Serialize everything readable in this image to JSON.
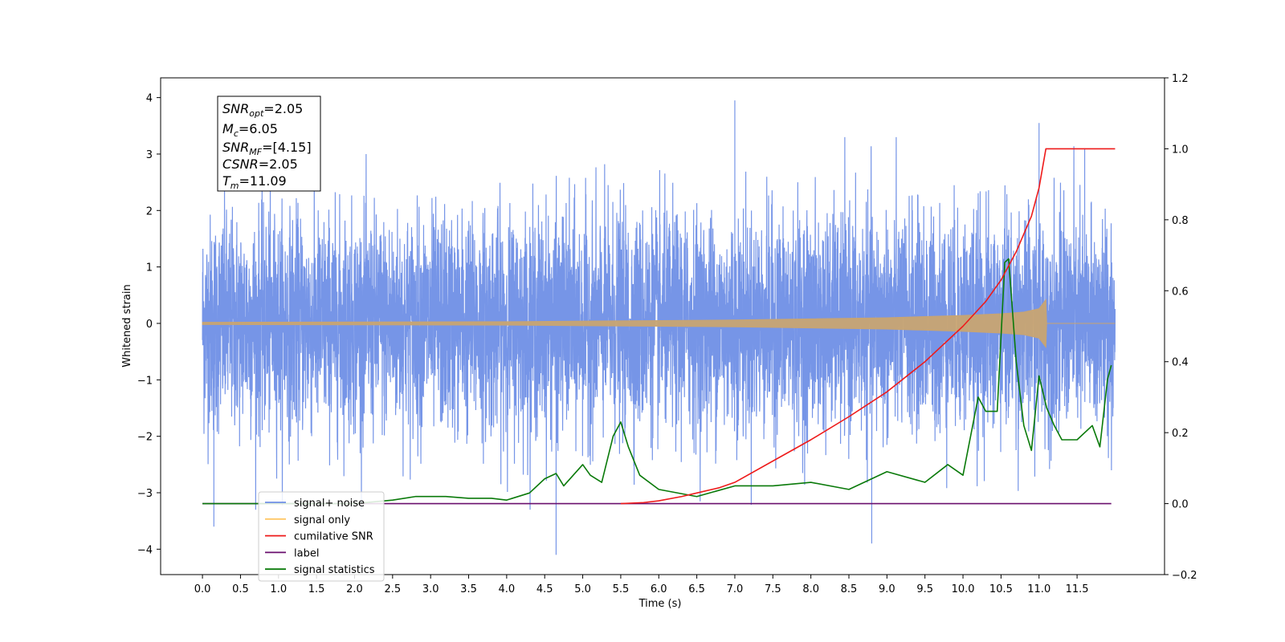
{
  "chart_data": {
    "type": "line",
    "xlabel": "Time (s)",
    "ylabel_left": "Whitened strain",
    "ylabel_right": "",
    "xlim": [
      -0.55,
      12.65
    ],
    "ylim_left": [
      -4.45,
      4.35
    ],
    "ylim_right": [
      -0.2,
      1.2
    ],
    "x_ticks": [
      0.0,
      0.5,
      1.0,
      1.5,
      2.0,
      2.5,
      3.0,
      3.5,
      4.0,
      4.5,
      5.0,
      5.5,
      6.0,
      6.5,
      7.0,
      7.5,
      8.0,
      8.5,
      9.0,
      9.5,
      10.0,
      10.5,
      11.0,
      11.5
    ],
    "x_tick_labels": [
      "0.0",
      "0.5",
      "1.0",
      "1.5",
      "2.0",
      "2.5",
      "3.0",
      "3.5",
      "4.0",
      "4.5",
      "5.0",
      "5.5",
      "6.0",
      "6.5",
      "7.0",
      "7.5",
      "8.0",
      "8.5",
      "9.0",
      "9.5",
      "10.0",
      "10.5",
      "11.0",
      "11.5"
    ],
    "y_left_ticks": [
      4,
      3,
      2,
      1,
      0,
      -1,
      -2,
      -3,
      -4
    ],
    "y_left_tick_labels": [
      "4",
      "3",
      "2",
      "1",
      "0",
      "−1",
      "−2",
      "−3",
      "−4"
    ],
    "y_right_ticks": [
      1.2,
      1.0,
      0.8,
      0.6,
      0.4,
      0.2,
      0.0,
      -0.2
    ],
    "y_right_tick_labels": [
      "1.2",
      "1.0",
      "0.8",
      "0.6",
      "0.4",
      "0.2",
      "0.0",
      "−0.2"
    ],
    "grid": false,
    "legend_position": "lower-left",
    "series": [
      {
        "name": "signal+ noise",
        "axis": "left",
        "color": "#6f8fe6",
        "description_values": "dense whitened noise between about -4.1 and 3.95, time 0 to 12.0 s",
        "notable_peaks": [
          [
            0.15,
            -3.6
          ],
          [
            4.65,
            -4.1
          ],
          [
            7.0,
            3.95
          ],
          [
            8.8,
            -3.9
          ],
          [
            11.0,
            3.55
          ],
          [
            11.6,
            3.1
          ]
        ],
        "envelope": [
          [
            0.0,
            1.3,
            -1.3
          ],
          [
            6.0,
            1.3,
            -1.3
          ],
          [
            12.0,
            1.3,
            -1.3
          ]
        ]
      },
      {
        "name": "signal only",
        "axis": "left",
        "color": "#c8a472",
        "envelope": [
          [
            0.0,
            0.02
          ],
          [
            4.0,
            0.03
          ],
          [
            6.0,
            0.05
          ],
          [
            7.0,
            0.06
          ],
          [
            8.0,
            0.08
          ],
          [
            9.0,
            0.1
          ],
          [
            9.5,
            0.12
          ],
          [
            10.0,
            0.14
          ],
          [
            10.5,
            0.17
          ],
          [
            10.8,
            0.2
          ],
          [
            11.0,
            0.26
          ],
          [
            11.09,
            0.42
          ],
          [
            11.1,
            0.0
          ],
          [
            12.0,
            0.0
          ]
        ]
      },
      {
        "name": "cumilative SNR",
        "axis": "right",
        "color": "#ee1b1b",
        "x": [
          5.5,
          5.8,
          6.0,
          6.3,
          6.5,
          6.8,
          7.0,
          7.5,
          8.0,
          8.5,
          9.0,
          9.5,
          10.0,
          10.3,
          10.5,
          10.7,
          10.9,
          11.0,
          11.09,
          11.1,
          12.0
        ],
        "values": [
          0.0,
          0.003,
          0.008,
          0.02,
          0.03,
          0.045,
          0.06,
          0.12,
          0.18,
          0.245,
          0.315,
          0.4,
          0.5,
          0.57,
          0.63,
          0.71,
          0.81,
          0.89,
          1.0,
          1.0,
          1.0
        ]
      },
      {
        "name": "label",
        "axis": "right",
        "color": "#6a0f6e",
        "x": [
          0.0,
          11.95
        ],
        "values": [
          0.0,
          0.0
        ]
      },
      {
        "name": "signal statistics",
        "axis": "right",
        "color": "#0a7a0a",
        "x": [
          0.0,
          2.0,
          2.5,
          2.8,
          3.0,
          3.2,
          3.5,
          3.8,
          4.0,
          4.3,
          4.5,
          4.65,
          4.75,
          5.0,
          5.1,
          5.25,
          5.4,
          5.5,
          5.6,
          5.75,
          6.0,
          6.5,
          7.0,
          7.5,
          8.0,
          8.5,
          9.0,
          9.5,
          9.8,
          10.0,
          10.2,
          10.3,
          10.45,
          10.55,
          10.6,
          10.7,
          10.8,
          10.9,
          11.0,
          11.1,
          11.2,
          11.3,
          11.5,
          11.7,
          11.8,
          11.9,
          11.95
        ],
        "values": [
          0.0,
          0.0,
          0.01,
          0.02,
          0.02,
          0.02,
          0.015,
          0.015,
          0.01,
          0.03,
          0.07,
          0.085,
          0.05,
          0.11,
          0.08,
          0.06,
          0.19,
          0.23,
          0.16,
          0.08,
          0.04,
          0.02,
          0.05,
          0.05,
          0.06,
          0.04,
          0.09,
          0.06,
          0.11,
          0.08,
          0.3,
          0.26,
          0.26,
          0.68,
          0.69,
          0.4,
          0.22,
          0.15,
          0.36,
          0.27,
          0.22,
          0.18,
          0.18,
          0.22,
          0.16,
          0.35,
          0.39
        ]
      }
    ],
    "annotation": {
      "lines": [
        {
          "base": "SNR",
          "sub": "opt",
          "value": "=2.05"
        },
        {
          "base": "M",
          "sub": "c",
          "value": "=6.05"
        },
        {
          "base": "SNR",
          "sub": "MF",
          "value": "=[4.15]"
        },
        {
          "base": "CSNR",
          "sub": "",
          "value": "=2.05"
        },
        {
          "base": "T",
          "sub": "m",
          "value": "=11.09"
        }
      ]
    },
    "legend": [
      {
        "label": "signal+ noise",
        "color": "#6f8fe6"
      },
      {
        "label": "signal only",
        "color": "#ffc766"
      },
      {
        "label": "cumilative SNR",
        "color": "#ee1b1b"
      },
      {
        "label": "label",
        "color": "#6a0f6e"
      },
      {
        "label": "signal statistics",
        "color": "#0a7a0a"
      }
    ]
  }
}
